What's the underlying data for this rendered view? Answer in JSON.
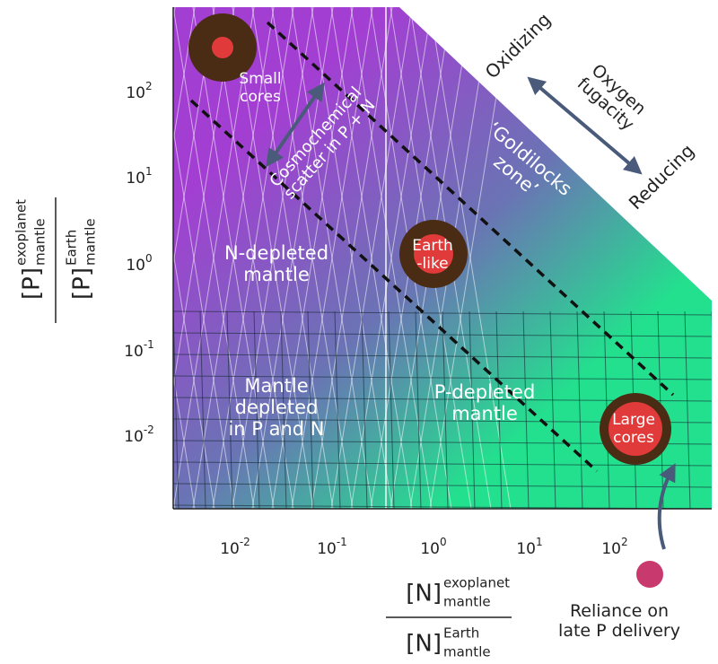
{
  "x_axis": {
    "ticks": [
      {
        "base": "10",
        "exponent": "-2"
      },
      {
        "base": "10",
        "exponent": "-1"
      },
      {
        "base": "10",
        "exponent": "0"
      },
      {
        "base": "10",
        "exponent": "1"
      },
      {
        "base": "10",
        "exponent": "2"
      }
    ],
    "label": {
      "numerator": {
        "symbol": "[N]",
        "sup": "exoplanet",
        "sub": "mantle"
      },
      "denominator": {
        "symbol": "[N]",
        "sup": "Earth",
        "sub": "mantle"
      }
    }
  },
  "y_axis": {
    "ticks": [
      {
        "base": "10",
        "exponent": "2"
      },
      {
        "base": "10",
        "exponent": "1"
      },
      {
        "base": "10",
        "exponent": "0"
      },
      {
        "base": "10",
        "exponent": "-1"
      },
      {
        "base": "10",
        "exponent": "-2"
      }
    ],
    "label": {
      "numerator": {
        "symbol": "[P]",
        "sup": "exoplanet",
        "sub": "mantle"
      },
      "denominator": {
        "symbol": "[P]",
        "sup": "Earth",
        "sub": "mantle"
      }
    }
  },
  "regions": {
    "small_cores": [
      "Small",
      "cores"
    ],
    "earth_like": [
      "Earth",
      "-like"
    ],
    "large_cores": [
      "Large",
      "cores"
    ],
    "n_depleted": [
      "N-depleted",
      "mantle"
    ],
    "p_and_n_depleted": [
      "Mantle",
      "depleted",
      "in P and N"
    ],
    "p_depleted": [
      "P-depleted",
      "mantle"
    ],
    "goldilocks": [
      "‘Goldilocks",
      "zone’"
    ],
    "scatter": [
      "Cosmochemical",
      "scatter in P + N"
    ]
  },
  "oxygen": {
    "oxidizing": "Oxidizing",
    "reducing": "Reducing",
    "fugacity": [
      "Oxygen",
      "fugacity"
    ]
  },
  "late_delivery": [
    "Reliance on",
    "late P delivery"
  ]
}
